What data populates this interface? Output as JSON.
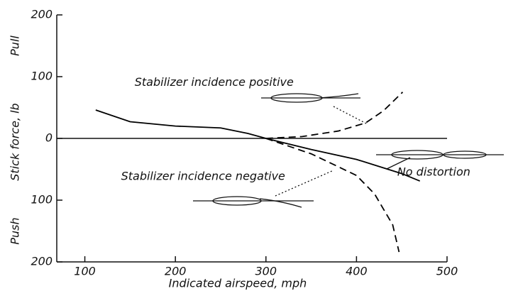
{
  "chart_data": {
    "type": "line",
    "xlabel": "Indicated airspeed, mph",
    "ylabel": "Stick force, lb",
    "ylabel_top": "Pull",
    "ylabel_bottom": "Push",
    "xlim": [
      69,
      500
    ],
    "xticks": [
      100,
      200,
      300,
      400,
      500
    ],
    "ylim": [
      -200,
      200
    ],
    "yticks": [
      200,
      100,
      0,
      {
        "value": -100,
        "label": "100"
      },
      {
        "value": -200,
        "label": "200"
      }
    ],
    "series": [
      {
        "x": [
          112,
          150,
          200,
          250,
          280,
          300,
          350,
          400,
          450,
          470
        ],
        "values": [
          46,
          27,
          20,
          17,
          8,
          0,
          -18,
          -34,
          -57,
          -69
        ],
        "color": "#000000",
        "dashed": false
      },
      {
        "x": [
          300,
          340,
          380,
          410,
          430,
          451
        ],
        "values": [
          0,
          3,
          12,
          25,
          45,
          75
        ],
        "color": "#000000",
        "dashed": true
      },
      {
        "x": [
          300,
          350,
          400,
          420,
          440,
          447
        ],
        "values": [
          0,
          -25,
          -60,
          -90,
          -140,
          -184
        ],
        "color": "#000000",
        "dashed": true
      }
    ],
    "annotations": [
      {
        "text": "Stabilizer incidence positive",
        "x": 155,
        "y": 90
      },
      {
        "text": "Stabilizer incidence negative",
        "x": 140,
        "y": -62
      },
      {
        "text": "No distortion",
        "x": 445,
        "y": -55
      }
    ]
  }
}
